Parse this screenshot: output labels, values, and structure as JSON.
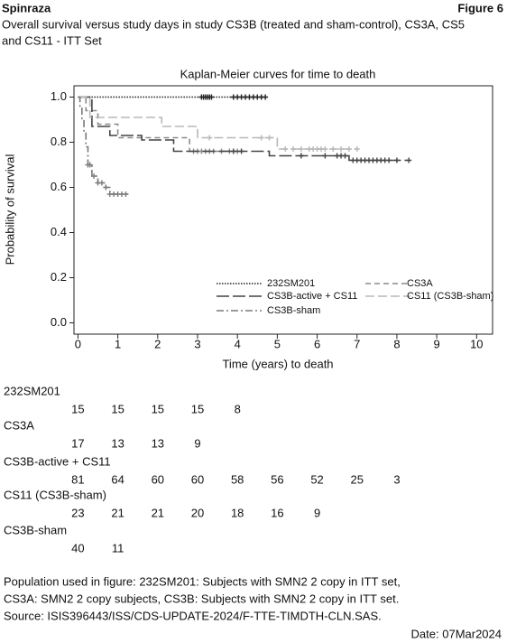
{
  "header": {
    "left": "Spinraza",
    "right": "Figure 6",
    "caption": [
      "Overall survival versus study days in study CS3B (treated and sham-control), CS3A, CS5",
      "and CS11 - ITT Set"
    ]
  },
  "chart_data": {
    "type": "line",
    "title": "Kaplan-Meier curves for time to death",
    "xlabel": "Time (years) to death",
    "ylabel": "Probability of survival",
    "xlim": [
      -0.1,
      10.4
    ],
    "ylim": [
      -0.05,
      1.05
    ],
    "xticks": [
      0,
      1,
      2,
      3,
      4,
      5,
      6,
      7,
      8,
      9,
      10
    ],
    "yticks": [
      {
        "value": 0,
        "label": "0.0"
      },
      0.2,
      0.4,
      0.6,
      0.8,
      {
        "value": 1,
        "label": "1.0"
      }
    ],
    "legend": "lower right",
    "series": [
      {
        "name": "232SM201",
        "color": "#222222",
        "dash": "1.5,1.5",
        "x": [
          0,
          4.7
        ],
        "values": [
          1,
          1
        ],
        "censored": [
          3.1,
          3.15,
          3.2,
          3.25,
          3.3,
          3.35,
          3.9,
          4.0,
          4.1,
          4.2,
          4.3,
          4.4,
          4.5,
          4.6,
          4.7
        ]
      },
      {
        "name": "CS3A",
        "color": "#8a8a8a",
        "dash": "6,4",
        "x": [
          0,
          0.2,
          0.2,
          0.5,
          0.5,
          1.0,
          1.0,
          2.8,
          2.8,
          4.1
        ],
        "values": [
          1,
          1,
          0.94,
          0.94,
          0.88,
          0.88,
          0.82,
          0.82,
          0.76,
          0.76
        ],
        "censored": [
          2.9,
          3.0,
          3.1,
          3.2,
          3.3,
          3.4,
          3.6,
          3.8,
          4.0
        ]
      },
      {
        "name": "CS3B-active + CS11",
        "color": "#444444",
        "dash": "14,4",
        "x": [
          0,
          0.35,
          0.35,
          0.8,
          0.8,
          1.6,
          1.6,
          2.4,
          2.4,
          4.8,
          4.8,
          6.8,
          6.8,
          8.3
        ],
        "values": [
          1,
          1,
          0.87,
          0.87,
          0.83,
          0.83,
          0.81,
          0.81,
          0.76,
          0.76,
          0.74,
          0.74,
          0.72,
          0.72
        ],
        "censored": [
          3.9,
          4.1,
          5.6,
          6.2,
          6.5,
          6.6,
          6.7,
          6.9,
          7.0,
          7.1,
          7.2,
          7.3,
          7.4,
          7.5,
          7.6,
          7.7,
          7.8,
          8.0,
          8.3
        ]
      },
      {
        "name": "CS11 (CS3B-sham)",
        "color": "#b8b8b8",
        "dash": "10,4",
        "x": [
          0,
          0.3,
          0.3,
          2.1,
          2.1,
          3.0,
          3.0,
          5.0,
          5.0,
          7.0
        ],
        "values": [
          1,
          1,
          0.91,
          0.91,
          0.87,
          0.87,
          0.82,
          0.82,
          0.77,
          0.77
        ],
        "censored": [
          3.3,
          4.6,
          4.8,
          5.2,
          5.4,
          5.6,
          5.8,
          5.9,
          6.0,
          6.1,
          6.2,
          6.4,
          6.6,
          6.8,
          7.0
        ]
      },
      {
        "name": "CS3B-sham",
        "color": "#7a7a7a",
        "dash": "8,3,2,3",
        "x": [
          0,
          0.05,
          0.05,
          0.1,
          0.1,
          0.15,
          0.15,
          0.2,
          0.2,
          0.25,
          0.25,
          0.35,
          0.35,
          0.5,
          0.5,
          0.7,
          0.7,
          0.8,
          0.8,
          1.25
        ],
        "values": [
          1,
          1,
          0.95,
          0.95,
          0.9,
          0.9,
          0.85,
          0.85,
          0.78,
          0.78,
          0.7,
          0.7,
          0.65,
          0.65,
          0.62,
          0.62,
          0.6,
          0.6,
          0.57,
          0.57
        ],
        "censored": [
          0.25,
          0.3,
          0.4,
          0.5,
          0.6,
          0.7,
          0.8,
          0.9,
          1.0,
          1.1,
          1.2
        ]
      }
    ]
  },
  "risk_table": {
    "rows": [
      {
        "name": "232SM201",
        "counts": [
          15,
          15,
          15,
          15,
          8
        ]
      },
      {
        "name": "CS3A",
        "counts": [
          17,
          13,
          13,
          9
        ]
      },
      {
        "name": "CS3B-active + CS11",
        "counts": [
          81,
          64,
          60,
          60,
          58,
          56,
          52,
          25,
          3
        ]
      },
      {
        "name": "CS11 (CS3B-sham)",
        "counts": [
          23,
          21,
          21,
          20,
          18,
          16,
          9
        ]
      },
      {
        "name": "CS3B-sham",
        "counts": [
          40,
          11
        ]
      }
    ]
  },
  "footer": {
    "lines": [
      "Population used in figure: 232SM201: Subjects with SMN2 2 copy in ITT set,",
      "CS3A: SMN2 2 copy subjects, CS3B: Subjects with SMN2 2 copy in ITT set.",
      "Source: ISIS396443/ISS/CDS-UPDATE-2024/F-TTE-TIMDTH-CLN.SAS."
    ],
    "date": "Date: 07Mar2024"
  }
}
